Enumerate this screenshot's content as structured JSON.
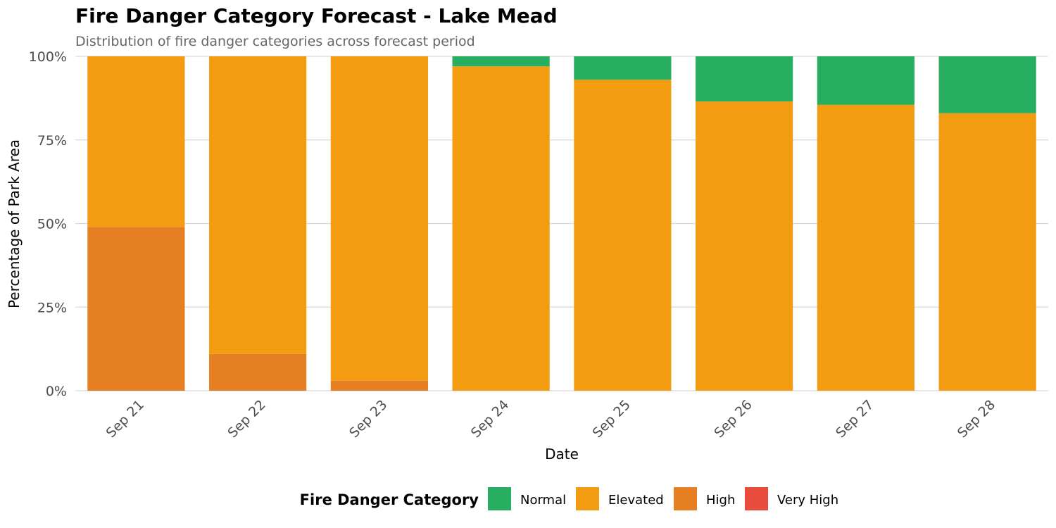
{
  "chart_data": {
    "type": "bar",
    "stacked": true,
    "title": "Fire Danger Category Forecast - Lake Mead",
    "subtitle": "Distribution of fire danger categories across forecast period",
    "xlabel": "Date",
    "ylabel": "Percentage of Park Area",
    "ylim": [
      0,
      100
    ],
    "yticks": [
      "0%",
      "25%",
      "50%",
      "75%",
      "100%"
    ],
    "ytick_values": [
      0,
      25,
      50,
      75,
      100
    ],
    "categories": [
      "Sep 21",
      "Sep 22",
      "Sep 23",
      "Sep 24",
      "Sep 25",
      "Sep 26",
      "Sep 27",
      "Sep 28"
    ],
    "series": [
      {
        "name": "Very High",
        "color": "#e74c3c",
        "values": [
          0,
          0,
          0,
          0,
          0,
          0,
          0,
          0
        ]
      },
      {
        "name": "High",
        "color": "#e67e22",
        "values": [
          49,
          11,
          3,
          0,
          0,
          0,
          0,
          0
        ]
      },
      {
        "name": "Elevated",
        "color": "#f39c12",
        "values": [
          51,
          89,
          97,
          97,
          93,
          86.5,
          85.5,
          83
        ]
      },
      {
        "name": "Normal",
        "color": "#27ae60",
        "values": [
          0,
          0,
          0,
          3,
          7,
          13.5,
          14.5,
          17
        ]
      }
    ],
    "grid": true,
    "legend": {
      "title": "Fire Danger Category",
      "position": "bottom",
      "order": [
        "Normal",
        "Elevated",
        "High",
        "Very High"
      ]
    }
  }
}
